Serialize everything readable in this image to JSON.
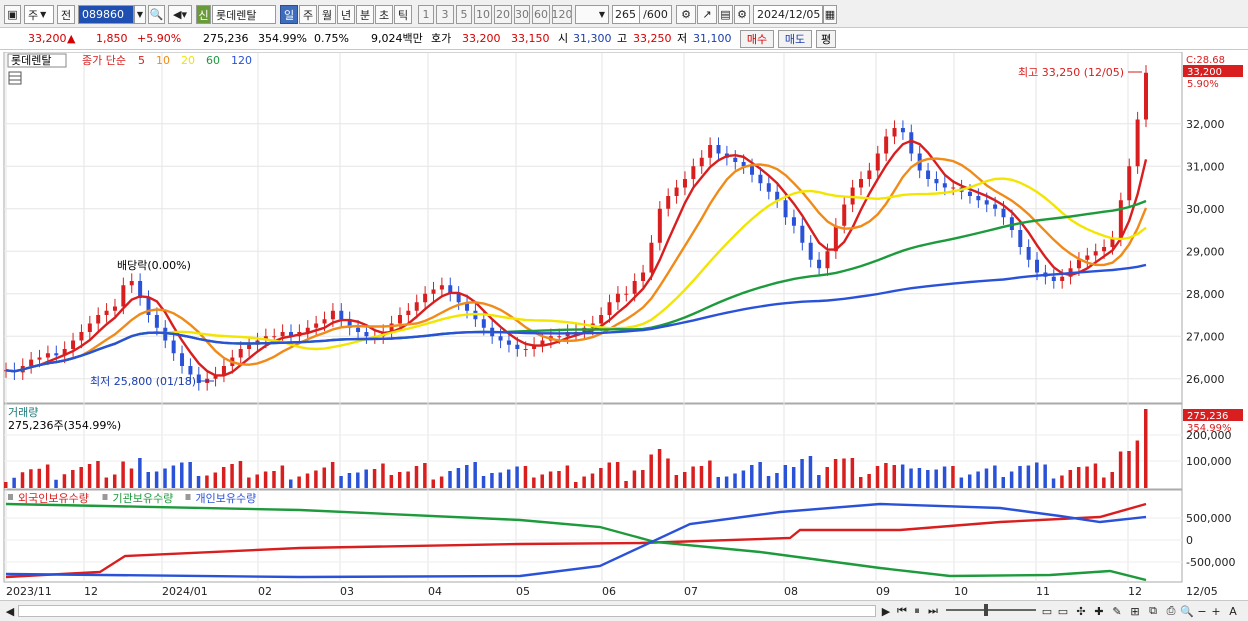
{
  "toolbar": {
    "market": "주",
    "prev": "전",
    "code": "089860",
    "shin": "신",
    "name": "롯데렌탈",
    "periods": [
      "일",
      "주",
      "월",
      "년",
      "분",
      "초",
      "틱"
    ],
    "numbers": [
      "1",
      "3",
      "5",
      "10",
      "20",
      "30",
      "60",
      "120"
    ],
    "count": "265",
    "count_total": "/600",
    "date": "2024/12/05"
  },
  "quote": {
    "price": "33,200",
    "arrow": "▲",
    "change": "1,850",
    "change_pct": "+5.90%",
    "volume": "275,236",
    "vol_ratio": "354.99%",
    "turnover": "0.75%",
    "amount": "9,024백만",
    "hoga_label": "호가",
    "ask": "33,200",
    "bid": "33,150",
    "open_label": "시",
    "open": "31,300",
    "high_label": "고",
    "high": "33,250",
    "low_label": "저",
    "low": "31,100",
    "buy": "매수",
    "sell": "매도",
    "eval": "평"
  },
  "price_panel": {
    "tag": "롯데렌탈",
    "ma_title": "종가 단순",
    "ma_periods": [
      "5",
      "10",
      "20",
      "60",
      "120"
    ],
    "ma_colors": [
      "#d81e1e",
      "#f08a18",
      "#f2e600",
      "#1d9a3c",
      "#2a52d8"
    ],
    "yaxis": [
      "32,000",
      "31,000",
      "30,000",
      "29,000",
      "28,000",
      "27,000",
      "26,000"
    ],
    "ann_c": "C:28.68",
    "price_tag": "33,200",
    "pct_tag": "5.90%",
    "high_note": "최고 33,250 (12/05)",
    "low_note": "최저 25,800 (01/18)",
    "dividend_note": "배당락(0.00%)"
  },
  "volume_panel": {
    "title": "거래량",
    "value": "275,236주(354.99%)",
    "yaxis": [
      "200,000",
      "100,000"
    ],
    "tag": "275,236",
    "tag_pct": "354.99%"
  },
  "holding_panel": {
    "legend": [
      "외국인보유수량",
      "기관보유수량",
      "개인보유수량"
    ],
    "colors": [
      "#d81e1e",
      "#1d9a3c",
      "#2a52d8"
    ],
    "yaxis": [
      "500,000",
      "0",
      "-500,000"
    ]
  },
  "xaxis": [
    "2023/11",
    "12",
    "2024/01",
    "02",
    "03",
    "04",
    "05",
    "06",
    "07",
    "08",
    "09",
    "10",
    "11",
    "12",
    "12/05"
  ],
  "chart_data": {
    "type": "candlestick",
    "title": "롯데렌탈",
    "ylim": [
      25500,
      33500
    ],
    "close": [
      26200,
      26150,
      26300,
      26450,
      26500,
      26600,
      26550,
      26700,
      26900,
      27100,
      27300,
      27500,
      27600,
      27700,
      28200,
      28300,
      27900,
      27500,
      27200,
      26900,
      26600,
      26300,
      26100,
      25900,
      26000,
      26100,
      26300,
      26500,
      26700,
      26800,
      26900,
      27000,
      27000,
      27100,
      27000,
      27100,
      27200,
      27300,
      27400,
      27600,
      27400,
      27200,
      27100,
      27000,
      27000,
      27100,
      27300,
      27500,
      27600,
      27800,
      28000,
      28100,
      28200,
      28000,
      27800,
      27600,
      27400,
      27200,
      27000,
      26900,
      26800,
      26700,
      26700,
      26800,
      26900,
      27000,
      27000,
      27100,
      27100,
      27200,
      27300,
      27500,
      27800,
      28000,
      28000,
      28300,
      28500,
      29200,
      30000,
      30300,
      30500,
      30700,
      31000,
      31200,
      31500,
      31300,
      31200,
      31100,
      31000,
      30800,
      30600,
      30400,
      30200,
      29800,
      29600,
      29200,
      28800,
      28600,
      29000,
      29600,
      30100,
      30500,
      30700,
      30900,
      31300,
      31700,
      31900,
      31800,
      31300,
      30900,
      30700,
      30600,
      30500,
      30500,
      30400,
      30300,
      30200,
      30100,
      30000,
      29800,
      29500,
      29100,
      28800,
      28500,
      28400,
      28300,
      28400,
      28600,
      28800,
      28900,
      29000,
      29100,
      29300,
      30200,
      31000,
      32100,
      33200
    ],
    "ma_summary": {
      "ma5": "red",
      "ma10": "orange",
      "ma20": "yellow",
      "ma60": "green",
      "ma120": "blue"
    }
  }
}
